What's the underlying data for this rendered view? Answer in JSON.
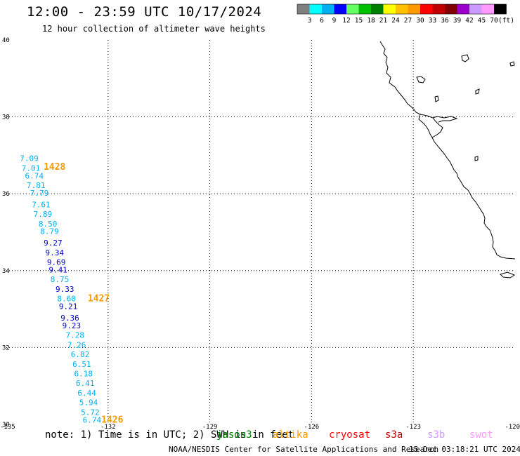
{
  "title": "12:00 - 23:59 UTC 10/17/2024",
  "subtitle": "12 hour collection of altimeter wave heights",
  "colorbar": {
    "colors": [
      "#808080",
      "#00ffff",
      "#00b0f0",
      "#0000ff",
      "#66ff66",
      "#00c000",
      "#008000",
      "#ffff00",
      "#ffc000",
      "#ff9900",
      "#ff0000",
      "#c00000",
      "#800000",
      "#9900cc",
      "#cc99ff",
      "#ff99ff",
      "#000000"
    ],
    "labels": [
      "3",
      "6",
      "9",
      "12",
      "15",
      "18",
      "21",
      "24",
      "27",
      "30",
      "33",
      "36",
      "39",
      "42",
      "45",
      "70",
      "(ft)"
    ]
  },
  "axes": {
    "lat_labels": [
      "40",
      "38",
      "36",
      "34",
      "32",
      "30"
    ],
    "lon_labels": [
      "-135",
      "-132",
      "-129",
      "-126",
      "-123",
      "-120"
    ]
  },
  "observations": [
    {
      "lat": 36.85,
      "lon": -134.6,
      "value": "7.09",
      "color": "#00b0f0"
    },
    {
      "lat": 36.6,
      "lon": -134.55,
      "value": "7.01",
      "color": "#00b0f0"
    },
    {
      "lat": 36.4,
      "lon": -134.45,
      "value": "6.74",
      "color": "#00b0f0"
    },
    {
      "lat": 36.15,
      "lon": -134.4,
      "value": "7.81",
      "color": "#00b0f0"
    },
    {
      "lat": 35.95,
      "lon": -134.3,
      "value": "7.79",
      "color": "#00b0f0"
    },
    {
      "lat": 35.65,
      "lon": -134.25,
      "value": "7.61",
      "color": "#00b0f0"
    },
    {
      "lat": 35.4,
      "lon": -134.2,
      "value": "7.89",
      "color": "#00b0f0"
    },
    {
      "lat": 35.15,
      "lon": -134.05,
      "value": "8.50",
      "color": "#00b0f0"
    },
    {
      "lat": 34.95,
      "lon": -134.0,
      "value": "8.79",
      "color": "#00b0f0"
    },
    {
      "lat": 34.65,
      "lon": -133.9,
      "value": "9.27",
      "color": "#0000cc"
    },
    {
      "lat": 34.4,
      "lon": -133.85,
      "value": "9.34",
      "color": "#0000cc"
    },
    {
      "lat": 34.15,
      "lon": -133.8,
      "value": "9.69",
      "color": "#0000cc"
    },
    {
      "lat": 33.95,
      "lon": -133.75,
      "value": "9.41",
      "color": "#0000cc"
    },
    {
      "lat": 33.7,
      "lon": -133.7,
      "value": "8.75",
      "color": "#00b0f0"
    },
    {
      "lat": 33.45,
      "lon": -133.55,
      "value": "9.33",
      "color": "#0000cc"
    },
    {
      "lat": 33.2,
      "lon": -133.5,
      "value": "8.60",
      "color": "#00b0f0"
    },
    {
      "lat": 33.0,
      "lon": -133.45,
      "value": "9.21",
      "color": "#0000cc"
    },
    {
      "lat": 32.7,
      "lon": -133.4,
      "value": "9.36",
      "color": "#0000cc"
    },
    {
      "lat": 32.5,
      "lon": -133.35,
      "value": "9.23",
      "color": "#0000cc"
    },
    {
      "lat": 32.25,
      "lon": -133.25,
      "value": "7.28",
      "color": "#00b0f0"
    },
    {
      "lat": 32.0,
      "lon": -133.2,
      "value": "7.26",
      "color": "#00b0f0"
    },
    {
      "lat": 31.75,
      "lon": -133.1,
      "value": "6.82",
      "color": "#00b0f0"
    },
    {
      "lat": 31.5,
      "lon": -133.05,
      "value": "6.51",
      "color": "#00b0f0"
    },
    {
      "lat": 31.25,
      "lon": -133.0,
      "value": "6.18",
      "color": "#00b0f0"
    },
    {
      "lat": 31.0,
      "lon": -132.95,
      "value": "6.41",
      "color": "#00b0f0"
    },
    {
      "lat": 30.75,
      "lon": -132.9,
      "value": "6.44",
      "color": "#00b0f0"
    },
    {
      "lat": 30.5,
      "lon": -132.85,
      "value": "5.94",
      "color": "#00b0f0"
    },
    {
      "lat": 30.25,
      "lon": -132.8,
      "value": "5.72",
      "color": "#00b0f0"
    },
    {
      "lat": 30.05,
      "lon": -132.75,
      "value": "6.74",
      "color": "#00b0f0"
    }
  ],
  "pass_labels": [
    {
      "lat": 36.62,
      "lon": -133.9,
      "text": "1428",
      "color": "#ff9900"
    },
    {
      "lat": 33.2,
      "lon": -132.6,
      "text": "1427",
      "color": "#ff9900"
    },
    {
      "lat": 30.05,
      "lon": -132.2,
      "text": "1426",
      "color": "#ff9900"
    }
  ],
  "note": "note: 1) Time is in UTC; 2) SWH is in feet",
  "satellites": [
    {
      "name": "jason3",
      "color": "#008000"
    },
    {
      "name": "altika",
      "color": "#ff9900"
    },
    {
      "name": "cryosat",
      "color": "#ff0000"
    },
    {
      "name": "s3a",
      "color": "#c00000"
    },
    {
      "name": "s3b",
      "color": "#cc99ff"
    },
    {
      "name": "swot",
      "color": "#ff99ff"
    }
  ],
  "credit": "NOAA/NESDIS Center for Satellite Applications and Research",
  "timestamp": "15 Dec 03:18:21 UTC 2024"
}
